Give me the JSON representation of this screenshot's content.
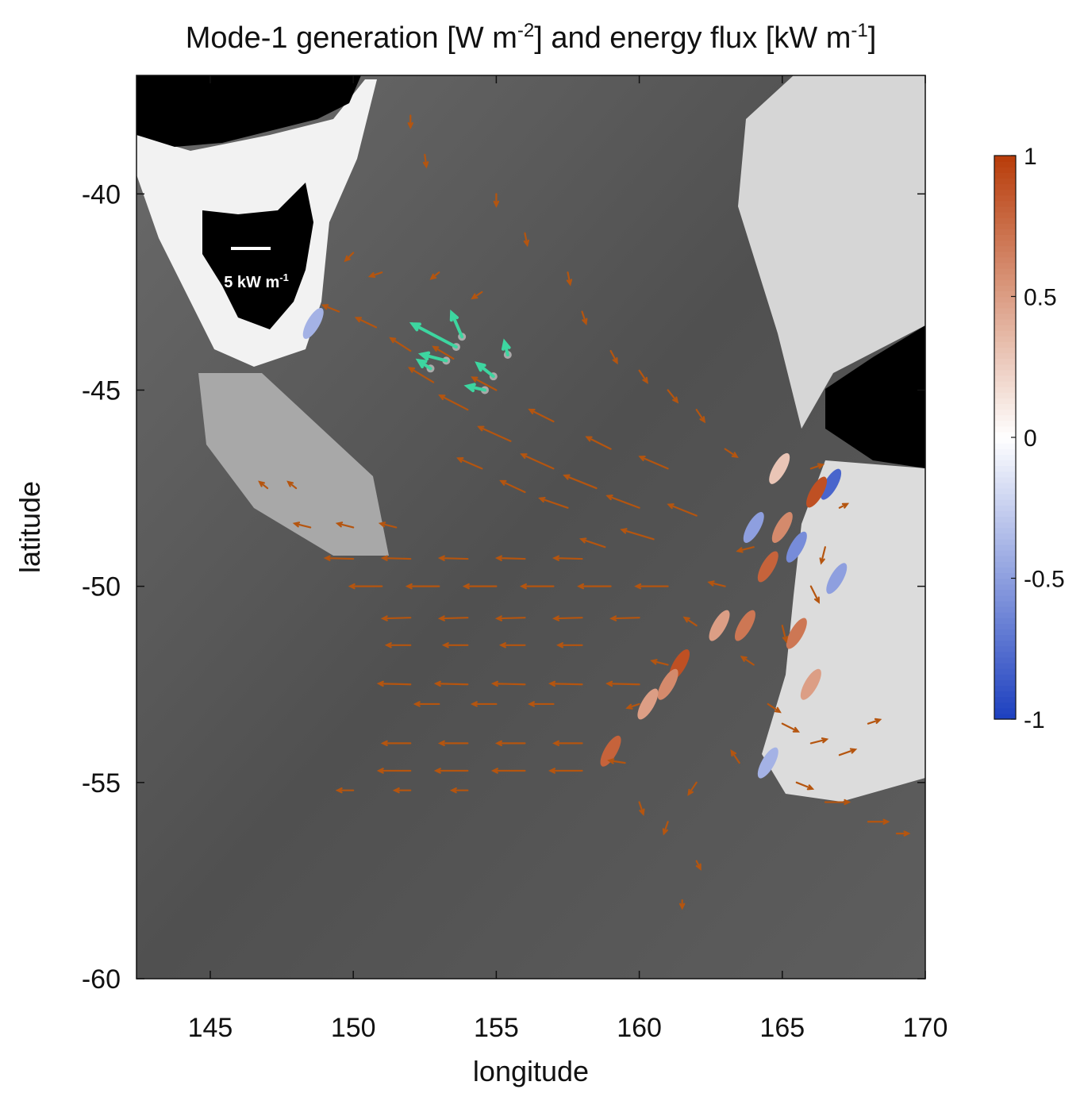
{
  "chart_data": {
    "type": "quiver",
    "title": [
      "Mode-1 generation [W m",
      "-2",
      "] and energy flux [kW m",
      "-1",
      "]"
    ],
    "xlabel": "longitude",
    "ylabel": "latitude",
    "xlim": [
      142.42,
      170
    ],
    "ylim": [
      -60,
      -36.98
    ],
    "xticks": [
      145,
      150,
      155,
      160,
      165,
      170
    ],
    "yticks": [
      -60,
      -55,
      -50,
      -45,
      -40
    ],
    "scale_arrow": {
      "value": 5,
      "label": [
        "5 kW m",
        "-1"
      ],
      "color": "#ffffff"
    },
    "flux": {
      "color": "#b5550f",
      "x": [
        160,
        158.5,
        157,
        155.5,
        154,
        152.8,
        152,
        150.8,
        149.5,
        157.5,
        156,
        154.5,
        161,
        159,
        157,
        155,
        153.5,
        160.5,
        162,
        158.8,
        150,
        152,
        154,
        156,
        158,
        151,
        153,
        155,
        157,
        159,
        161,
        152,
        154,
        156,
        158,
        160,
        152,
        154,
        156,
        158,
        152,
        154,
        156,
        158,
        160,
        153,
        155,
        157,
        152,
        154,
        156,
        158,
        152,
        154,
        156,
        158,
        150,
        152,
        154,
        148.5,
        150,
        151.5,
        147,
        148,
        158,
        159,
        160,
        161,
        162,
        163,
        157.5,
        152,
        152.5,
        155,
        156,
        150,
        151,
        153,
        154.5,
        164.5,
        165,
        166,
        167,
        168,
        165.5,
        166.5,
        168,
        169,
        163.5,
        162,
        161,
        160,
        162,
        161.5,
        164,
        165,
        166,
        166.5,
        167,
        166,
        164,
        163,
        162,
        161,
        160,
        159.5
      ],
      "y": [
        -48,
        -47.5,
        -47,
        -46.3,
        -45.5,
        -44.8,
        -44,
        -43.4,
        -43,
        -48,
        -47.6,
        -47,
        -47,
        -46.5,
        -45.8,
        -45,
        -44.2,
        -48.8,
        -48.2,
        -49,
        -49.3,
        -49.3,
        -49.3,
        -49.3,
        -49.3,
        -50,
        -50,
        -50,
        -50,
        -50,
        -50,
        -50.8,
        -50.8,
        -50.8,
        -50.8,
        -50.8,
        -51.5,
        -51.5,
        -51.5,
        -51.5,
        -52.5,
        -52.5,
        -52.5,
        -52.5,
        -52.5,
        -53,
        -53,
        -53,
        -54,
        -54,
        -54,
        -54,
        -54.7,
        -54.7,
        -54.7,
        -54.7,
        -55.2,
        -55.2,
        -55.2,
        -48.5,
        -48.5,
        -48.5,
        -47.5,
        -47.5,
        -43,
        -44,
        -44.5,
        -45,
        -45.5,
        -46.5,
        -42,
        -38,
        -39,
        -40,
        -41,
        -41.5,
        -42,
        -42,
        -42.5,
        -53,
        -53.5,
        -54,
        -54.3,
        -53.5,
        -55,
        -55.5,
        -56,
        -56.3,
        -54.5,
        -55,
        -56,
        -55.5,
        -57,
        -58,
        -52,
        -51,
        -50,
        -49,
        -48,
        -47,
        -49,
        -50,
        -51,
        -52,
        -53,
        -54.5
      ],
      "u": [
        -4,
        -4,
        -4,
        -4,
        -3.5,
        -3,
        -2.5,
        -2.5,
        -2,
        -3.5,
        -3,
        -3,
        -3.5,
        -3,
        -3,
        -3,
        -2.5,
        -4,
        -3.5,
        -3,
        -3.5,
        -3.5,
        -3.5,
        -3.5,
        -3.5,
        -4,
        -4,
        -4,
        -4,
        -4,
        -4,
        -3.5,
        -3.5,
        -3.5,
        -3.5,
        -3.5,
        -3,
        -3,
        -3,
        -3,
        -4,
        -4,
        -4,
        -4,
        -4,
        -3,
        -3,
        -3,
        -3.5,
        -3.5,
        -3.5,
        -3.5,
        -4,
        -4,
        -4,
        -4,
        -2,
        -2,
        -2,
        -2,
        -2,
        -2,
        -1,
        -1,
        0.5,
        0.8,
        1,
        1.2,
        1,
        1.5,
        0.3,
        0,
        0.2,
        0,
        0.3,
        -1,
        -1.5,
        -1,
        -1.2,
        1.5,
        2,
        2,
        2,
        1.5,
        2,
        3,
        2.5,
        1.5,
        -1,
        -1,
        -0.5,
        0.5,
        0.5,
        0,
        -1.5,
        0.5,
        1,
        -0.5,
        1,
        1.5,
        -2,
        -2,
        -1.5,
        -2,
        -1.5,
        -2
      ],
      "v": [
        1.5,
        1.6,
        1.8,
        1.8,
        1.8,
        1.8,
        1.6,
        1.2,
        0.8,
        1.2,
        1.4,
        1.3,
        1.5,
        1.5,
        1.5,
        1.6,
        1.5,
        1.2,
        1.4,
        1,
        0.1,
        0.1,
        0.1,
        0.1,
        0.1,
        0,
        0,
        0,
        0,
        0,
        0,
        -0.1,
        -0.1,
        -0.1,
        -0.1,
        -0.1,
        0,
        0,
        0,
        0,
        0.1,
        0.1,
        0.1,
        0.1,
        0.1,
        0,
        0,
        0,
        0,
        0,
        0,
        0,
        0,
        0,
        0,
        0,
        0,
        0,
        0,
        0.5,
        0.5,
        0.5,
        0.8,
        0.8,
        -1.5,
        -1.5,
        -1.5,
        -1.5,
        -1.5,
        -1,
        -1.5,
        -1.5,
        -1.5,
        -1.5,
        -1.5,
        -1,
        -0.5,
        -0.8,
        -0.8,
        -1,
        -1,
        0.5,
        0.7,
        0.5,
        -0.8,
        0,
        0,
        0,
        1.5,
        -1.5,
        -1.5,
        -1.5,
        -1,
        -1,
        1,
        -2,
        -2,
        -2,
        0.5,
        0.5,
        -0.5,
        0.5,
        1,
        0.5,
        -0.5,
        0.3
      ]
    },
    "flux_highlight": {
      "color": "#3dd6a0",
      "x": [
        153.8,
        153.6,
        153.25,
        152.7,
        155.4,
        154.9,
        154.6
      ],
      "y": [
        -43.64,
        -43.9,
        -44.25,
        -44.45,
        -44.1,
        -44.65,
        -45.0
      ],
      "u": [
        -1.3,
        -5.5,
        -3.1,
        -1.5,
        -0.4,
        -2.0,
        -2.2
      ],
      "v": [
        3.0,
        2.9,
        0.8,
        1.0,
        1.6,
        1.6,
        0.5
      ]
    },
    "generation": {
      "x": [
        166.7,
        166.2,
        165,
        164.5,
        164,
        165.5,
        163.7,
        162.8,
        161.4,
        161,
        160.3,
        159,
        164.5,
        165.5,
        166,
        148.6,
        164.9,
        166.9
      ],
      "y": [
        -47.4,
        -47.6,
        -48.5,
        -49.5,
        -48.5,
        -49,
        -51,
        -51,
        -52,
        -52.5,
        -53,
        -54.2,
        -54.5,
        -51.2,
        -52.5,
        -43.3,
        -47,
        -49.8
      ],
      "values": [
        -0.8,
        0.9,
        0.6,
        0.8,
        -0.5,
        -0.6,
        0.7,
        0.5,
        0.9,
        0.6,
        0.5,
        0.8,
        -0.4,
        0.7,
        0.5,
        -0.4,
        0.3,
        -0.5
      ]
    },
    "colorbar": {
      "lim": [
        -1,
        1
      ],
      "ticks": [
        -1,
        -0.5,
        0,
        0.5,
        1
      ],
      "colors": [
        "#1c3fbf",
        "#ffffff",
        "#b83c0a"
      ]
    }
  }
}
